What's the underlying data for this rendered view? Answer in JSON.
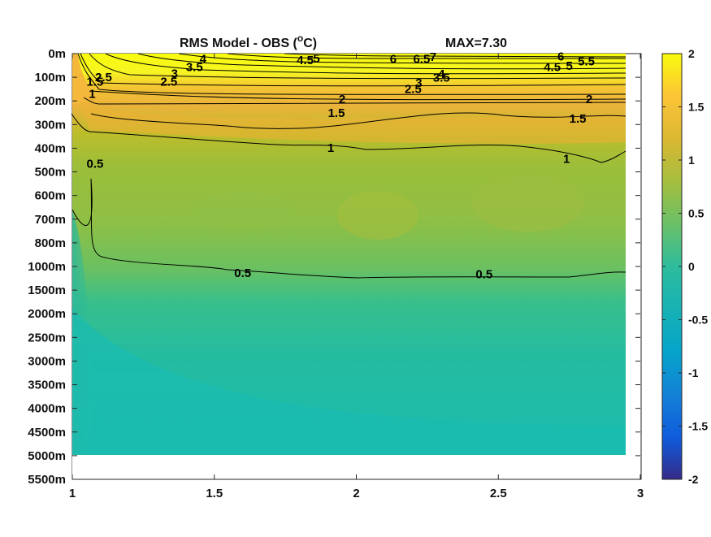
{
  "chart_data": {
    "type": "heatmap",
    "title": "RMS Model - OBS (",
    "title_unit_sup": "o",
    "title_unit_tail": "C)",
    "max_label": "MAX=7.30",
    "x": {
      "range": [
        1,
        3
      ],
      "ticks": [
        "1",
        "1.5",
        "2",
        "2.5",
        "3"
      ],
      "tick_values": [
        1,
        1.5,
        2,
        2.5,
        3
      ]
    },
    "y": {
      "ticks": [
        "0m",
        "100m",
        "200m",
        "300m",
        "400m",
        "500m",
        "600m",
        "700m",
        "800m",
        "1000m",
        "1500m",
        "2000m",
        "2500m",
        "3000m",
        "3500m",
        "4000m",
        "4500m",
        "5000m",
        "5500m"
      ],
      "tick_values": [
        0,
        100,
        200,
        300,
        400,
        500,
        600,
        700,
        800,
        1000,
        1500,
        2000,
        2500,
        3000,
        3500,
        4000,
        4500,
        5000,
        5500
      ],
      "reversed": true
    },
    "colorbar": {
      "range": [
        -2,
        2
      ],
      "ticks": [
        "2",
        "1.5",
        "1",
        "0.5",
        "0",
        "-0.5",
        "-1",
        "-1.5",
        "-2"
      ],
      "tick_values": [
        2,
        1.5,
        1,
        0.5,
        0,
        -0.5,
        -1,
        -1.5,
        -2
      ],
      "colormap": "parula"
    },
    "contour_labels": [
      {
        "text": "4",
        "x": 1.46,
        "depth_idx": 0.22
      },
      {
        "text": "4.5",
        "x": 1.82,
        "depth_idx": 0.28
      },
      {
        "text": "5",
        "x": 1.86,
        "depth_idx": 0.2
      },
      {
        "text": "6",
        "x": 2.13,
        "depth_idx": 0.22
      },
      {
        "text": "6.5",
        "x": 2.23,
        "depth_idx": 0.22
      },
      {
        "text": "7",
        "x": 2.27,
        "depth_idx": 0.14
      },
      {
        "text": "6",
        "x": 2.72,
        "depth_idx": 0.12
      },
      {
        "text": "5.5",
        "x": 2.81,
        "depth_idx": 0.32
      },
      {
        "text": "4.5",
        "x": 2.69,
        "depth_idx": 0.56
      },
      {
        "text": "5",
        "x": 2.75,
        "depth_idx": 0.52
      },
      {
        "text": "3.5",
        "x": 1.43,
        "depth_idx": 0.56
      },
      {
        "text": "3",
        "x": 1.36,
        "depth_idx": 0.85
      },
      {
        "text": "2.5",
        "x": 1.34,
        "depth_idx": 1.18
      },
      {
        "text": "3.5",
        "x": 2.3,
        "depth_idx": 1.02
      },
      {
        "text": "4",
        "x": 2.3,
        "depth_idx": 0.86
      },
      {
        "text": "3",
        "x": 2.22,
        "depth_idx": 1.24
      },
      {
        "text": "2.5",
        "x": 2.2,
        "depth_idx": 1.5
      },
      {
        "text": "2.5",
        "x": 1.11,
        "depth_idx": 1.0
      },
      {
        "text": "1.5",
        "x": 1.08,
        "depth_idx": 1.18
      },
      {
        "text": "1",
        "x": 1.07,
        "depth_idx": 1.7
      },
      {
        "text": "2",
        "x": 1.95,
        "depth_idx": 1.92
      },
      {
        "text": "2",
        "x": 2.82,
        "depth_idx": 1.92
      },
      {
        "text": "1.5",
        "x": 1.93,
        "depth_idx": 2.5
      },
      {
        "text": "1.5",
        "x": 2.78,
        "depth_idx": 2.75
      },
      {
        "text": "1",
        "x": 1.91,
        "depth_idx": 3.98
      },
      {
        "text": "1",
        "x": 2.74,
        "depth_idx": 4.45
      },
      {
        "text": "0.5",
        "x": 1.08,
        "depth_idx": 4.65
      },
      {
        "text": "0.5",
        "x": 1.6,
        "depth_idx": 9.28
      },
      {
        "text": "0.5",
        "x": 2.45,
        "depth_idx": 9.33
      }
    ]
  }
}
